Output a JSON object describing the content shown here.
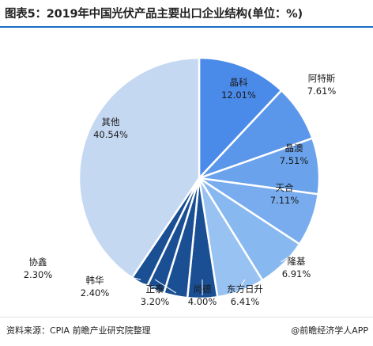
{
  "title": "图表5：2019年中国光伏产品主要出口企业结构(单位：%)",
  "source": "资料来源：CPIA 前瞻产业研究院整理",
  "credit": "@前瞻经济学人APP",
  "colors": {
    "title_rule": "#1a6fc4",
    "label_text": "#1a1a1a",
    "slice_border": "#ffffff"
  },
  "chart_data": {
    "type": "pie",
    "title": "图表5：2019年中国光伏产品主要出口企业结构(单位：%)",
    "start_direction": "12 o'clock, clockwise",
    "slices": [
      {
        "name": "晶科",
        "value": 12.01,
        "label": "12.01%",
        "color": "#4a8ae8"
      },
      {
        "name": "阿特斯",
        "value": 7.61,
        "label": "7.61%",
        "color": "#5a97ea"
      },
      {
        "name": "晶澳",
        "value": 7.51,
        "label": "7.51%",
        "color": "#6aa3ec"
      },
      {
        "name": "天合",
        "value": 7.11,
        "label": "7.11%",
        "color": "#78acee"
      },
      {
        "name": "隆基",
        "value": 6.91,
        "label": "6.91%",
        "color": "#88b8f0"
      },
      {
        "name": "东方日升",
        "value": 6.41,
        "label": "6.41%",
        "color": "#98c2f2"
      },
      {
        "name": "尚德",
        "value": 4.0,
        "label": "4.00%",
        "color": "#1a4f94"
      },
      {
        "name": "正泰",
        "value": 3.2,
        "label": "3.20%",
        "color": "#1a4f94"
      },
      {
        "name": "韩华",
        "value": 2.4,
        "label": "2.40%",
        "color": "#1a4f94"
      },
      {
        "name": "协鑫",
        "value": 2.3,
        "label": "2.30%",
        "color": "#1a4f94"
      },
      {
        "name": "其他",
        "value": 40.54,
        "label": "40.54%",
        "color": "#c5d8f2"
      }
    ]
  }
}
